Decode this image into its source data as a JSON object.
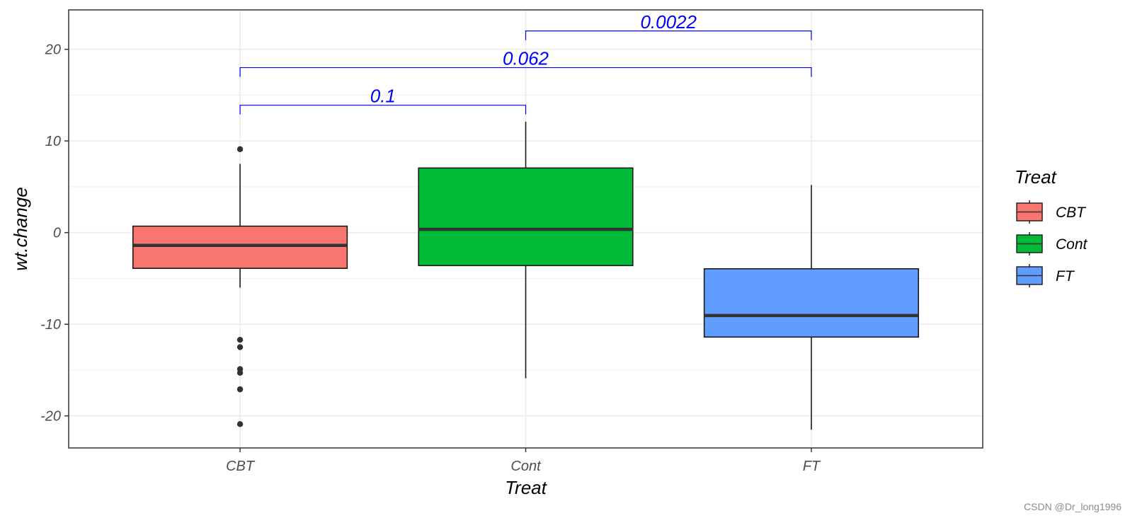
{
  "chart_data": {
    "type": "boxplot",
    "xlabel": "Treat",
    "ylabel": "wt.change",
    "ylim": [
      -23.5,
      24.3
    ],
    "yticks": [
      -20,
      -10,
      0,
      10,
      20
    ],
    "ytick_labels": [
      "-20",
      "-10",
      "0",
      "10",
      "20"
    ],
    "categories": [
      "CBT",
      "Cont",
      "FT"
    ],
    "grid": true,
    "legend": {
      "title": "Treat",
      "position": "right",
      "items": [
        {
          "label": "CBT",
          "color": "#F8766D"
        },
        {
          "label": "Cont",
          "color": "#00BA38"
        },
        {
          "label": "FT",
          "color": "#619CFF"
        }
      ]
    },
    "boxes": [
      {
        "category": "CBT",
        "color": "#F8766D",
        "q1": -3.9,
        "median": -1.4,
        "q3": 0.7,
        "whisker_low": -6.0,
        "whisker_high": 7.5,
        "outliers": [
          9.1,
          -11.7,
          -12.5,
          -14.9,
          -15.3,
          -17.1,
          -20.9
        ]
      },
      {
        "category": "Cont",
        "color": "#00BA38",
        "q1": -3.6,
        "median": 0.35,
        "q3": 7.05,
        "whisker_low": -15.9,
        "whisker_high": 12.1
      },
      {
        "category": "FT",
        "color": "#619CFF",
        "q1": -11.4,
        "median": -9.05,
        "q3": -3.95,
        "whisker_low": -21.5,
        "whisker_high": 5.2
      }
    ],
    "comparisons": [
      {
        "from": "CBT",
        "to": "Cont",
        "label": "0.1",
        "y": 13.9
      },
      {
        "from": "CBT",
        "to": "FT",
        "label": "0.062",
        "y": 18.0
      },
      {
        "from": "Cont",
        "to": "FT",
        "label": "0.0022",
        "y": 22.0
      }
    ],
    "colors": {
      "significance": "#0000ff",
      "grid": "#ebebeb",
      "median": "#333333",
      "outline": "#1a1a1a",
      "outlier": "#333333"
    }
  },
  "watermark": "CSDN @Dr_long1996"
}
